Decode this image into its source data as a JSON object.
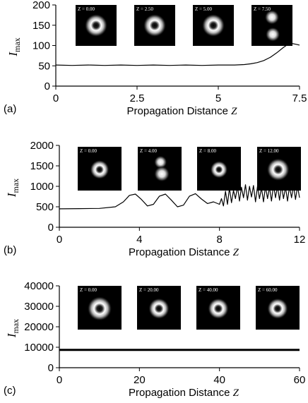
{
  "chart_data": [
    {
      "type": "line",
      "panel_label": "(a)",
      "xlabel": "Propagation Distance",
      "xlabel_var": "Z",
      "ylabel": "I",
      "ylabel_sub": "max",
      "xlim": [
        0,
        7.5
      ],
      "ylim": [
        0,
        200
      ],
      "xticks": [
        0,
        2.5,
        5,
        7.5
      ],
      "xtick_labels": [
        "0",
        "2.5",
        "5",
        "7.5"
      ],
      "yticks": [
        0,
        50,
        100,
        150,
        200
      ],
      "ytick_labels": [
        "0",
        "50",
        "100",
        "150",
        "200"
      ],
      "series": [
        {
          "x": [
            0,
            0.5,
            1,
            1.5,
            2,
            2.5,
            3,
            3.5,
            4,
            4.5,
            5,
            5.5,
            5.8,
            6.0,
            6.2,
            6.4,
            6.6,
            6.8,
            7.0,
            7.2,
            7.4,
            7.5
          ],
          "y": [
            52,
            51,
            52,
            51,
            52,
            51,
            52,
            51,
            52,
            51,
            52,
            52,
            53,
            55,
            58,
            63,
            71,
            82,
            95,
            106,
            103,
            101
          ]
        }
      ],
      "insets": [
        {
          "label": "Z = 0.00",
          "blobs": [
            {
              "cx": 0.5,
              "cy": 0.5,
              "r": 0.28,
              "ring": true
            }
          ]
        },
        {
          "label": "Z = 2.50",
          "blobs": [
            {
              "cx": 0.5,
              "cy": 0.5,
              "r": 0.28,
              "ring": true
            }
          ]
        },
        {
          "label": "Z = 5.00",
          "blobs": [
            {
              "cx": 0.5,
              "cy": 0.5,
              "r": 0.28,
              "ring": true
            }
          ]
        },
        {
          "label": "Z = 7.50",
          "blobs": [
            {
              "cx": 0.5,
              "cy": 0.3,
              "r": 0.18,
              "ring": false
            },
            {
              "cx": 0.52,
              "cy": 0.72,
              "r": 0.18,
              "ring": false
            }
          ]
        }
      ]
    },
    {
      "type": "line",
      "panel_label": "(b)",
      "xlabel": "Propagation Distance",
      "xlabel_var": "Z",
      "ylabel": "I",
      "ylabel_sub": "max",
      "xlim": [
        0,
        12
      ],
      "ylim": [
        0,
        2000
      ],
      "xticks": [
        0,
        4,
        8,
        12
      ],
      "xtick_labels": [
        "0",
        "4",
        "8",
        "12"
      ],
      "yticks": [
        0,
        500,
        1000,
        1500,
        2000
      ],
      "ytick_labels": [
        "0",
        "500",
        "1000",
        "1500",
        "2000"
      ],
      "series": [
        {
          "x": [
            0,
            1,
            2,
            2.8,
            3.2,
            3.5,
            3.8,
            4.1,
            4.4,
            4.7,
            5.0,
            5.3,
            5.6,
            5.9,
            6.2,
            6.5,
            6.8,
            7.1,
            7.4,
            7.7,
            8.0,
            8.1,
            8.2,
            8.3,
            8.4,
            8.5,
            8.6,
            8.7,
            8.8,
            8.9,
            9.0,
            9.1,
            9.2,
            9.3,
            9.4,
            9.5,
            9.6,
            9.7,
            9.8,
            9.9,
            10.0,
            10.1,
            10.2,
            10.3,
            10.4,
            10.5,
            10.6,
            10.7,
            10.8,
            10.9,
            11.0,
            11.1,
            11.2,
            11.3,
            11.4,
            11.5,
            11.6,
            11.7,
            11.8,
            11.9,
            12.0
          ],
          "y": [
            450,
            455,
            460,
            500,
            620,
            780,
            810,
            680,
            520,
            560,
            760,
            810,
            660,
            500,
            540,
            760,
            820,
            690,
            580,
            620,
            560,
            700,
            520,
            880,
            560,
            960,
            600,
            900,
            700,
            1000,
            640,
            980,
            720,
            1040,
            660,
            1000,
            740,
            1020,
            620,
            1000,
            700,
            960,
            620,
            1000,
            700,
            980,
            640,
            1040,
            720,
            1000,
            660,
            1020,
            700,
            980,
            640,
            1000,
            720,
            1020,
            680,
            1000,
            720
          ]
        }
      ],
      "insets": [
        {
          "label": "Z = 0.00",
          "blobs": [
            {
              "cx": 0.5,
              "cy": 0.52,
              "r": 0.22,
              "ring": true
            }
          ]
        },
        {
          "label": "Z = 4.00",
          "blobs": [
            {
              "cx": 0.52,
              "cy": 0.35,
              "r": 0.15,
              "ring": false
            },
            {
              "cx": 0.55,
              "cy": 0.62,
              "r": 0.18,
              "ring": false
            }
          ]
        },
        {
          "label": "Z = 8.00",
          "blobs": [
            {
              "cx": 0.5,
              "cy": 0.52,
              "r": 0.2,
              "ring": true
            }
          ]
        },
        {
          "label": "Z = 12.00",
          "blobs": [
            {
              "cx": 0.48,
              "cy": 0.52,
              "r": 0.26,
              "ring": true
            }
          ]
        }
      ]
    },
    {
      "type": "line",
      "panel_label": "(c)",
      "xlabel": "Propagation Distance",
      "xlabel_var": "Z",
      "ylabel": "I",
      "ylabel_sub": "max",
      "xlim": [
        0,
        60
      ],
      "ylim": [
        0,
        40000
      ],
      "xticks": [
        0,
        20,
        40,
        60
      ],
      "xtick_labels": [
        "0",
        "20",
        "40",
        "60"
      ],
      "yticks": [
        0,
        10000,
        20000,
        30000,
        40000
      ],
      "ytick_labels": [
        "0",
        "10000",
        "20000",
        "30000",
        "40000"
      ],
      "series": [
        {
          "x": [
            0,
            10,
            20,
            30,
            40,
            50,
            60
          ],
          "y": [
            8700,
            8700,
            8700,
            8700,
            8700,
            8700,
            8700
          ]
        }
      ],
      "insets": [
        {
          "label": "Z = 0.00",
          "blobs": [
            {
              "cx": 0.5,
              "cy": 0.52,
              "r": 0.28,
              "ring": true
            }
          ]
        },
        {
          "label": "Z = 20.00",
          "blobs": [
            {
              "cx": 0.5,
              "cy": 0.52,
              "r": 0.24,
              "ring": true
            }
          ]
        },
        {
          "label": "Z = 40.00",
          "blobs": [
            {
              "cx": 0.5,
              "cy": 0.52,
              "r": 0.24,
              "ring": true
            }
          ]
        },
        {
          "label": "Z = 60.00",
          "blobs": [
            {
              "cx": 0.5,
              "cy": 0.52,
              "r": 0.24,
              "ring": true
            }
          ]
        }
      ]
    }
  ]
}
